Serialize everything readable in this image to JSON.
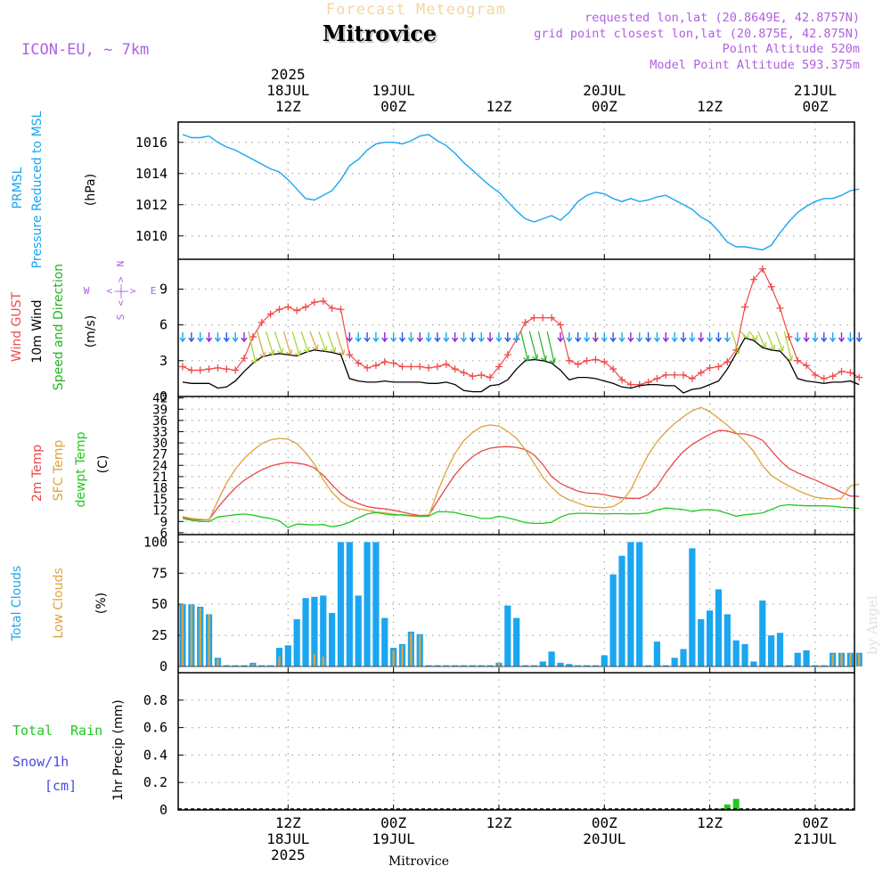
{
  "header": {
    "product": "Forecast Meteogram",
    "location": "Mitrovice",
    "model": "ICON-EU, ~ 7km",
    "info": [
      "requested lon,lat (20.8649E, 42.8757N)",
      "grid point closest lon,lat (20.875E, 42.875N)",
      "Point Altitude 520m",
      "Model Point Altitude 593.375m"
    ],
    "credit": "by Angel",
    "footer_location": "Mitrovice"
  },
  "time_axis": {
    "top_labels": [
      {
        "h": 12,
        "lines": [
          "2025",
          "18JUL",
          "12Z"
        ]
      },
      {
        "h": 24,
        "lines": [
          "19JUL",
          "00Z"
        ]
      },
      {
        "h": 36,
        "lines": [
          "12Z"
        ]
      },
      {
        "h": 48,
        "lines": [
          "20JUL",
          "00Z"
        ]
      },
      {
        "h": 60,
        "lines": [
          "12Z"
        ]
      },
      {
        "h": 72,
        "lines": [
          "21JUL",
          "00Z"
        ]
      }
    ],
    "bottom_labels": [
      {
        "h": 12,
        "lines": [
          "12Z",
          "18JUL",
          "2025"
        ]
      },
      {
        "h": 24,
        "lines": [
          "00Z",
          "19JUL"
        ]
      },
      {
        "h": 36,
        "lines": [
          "12Z"
        ]
      },
      {
        "h": 48,
        "lines": [
          "00Z",
          "20JUL"
        ]
      },
      {
        "h": 60,
        "lines": [
          "12Z"
        ]
      },
      {
        "h": 72,
        "lines": [
          "00Z",
          "21JUL"
        ]
      }
    ]
  },
  "colors": {
    "pressure": "#1aa6f0",
    "gust": "#f04a4a",
    "wind": "#000000",
    "wind_dir": "#22b422",
    "temp2m": "#e84848",
    "sfc_temp": "#dba23c",
    "dewpt": "#22c81e",
    "total_clouds": "#1aa6f0",
    "low_clouds": "#dba23c",
    "rain": "#22c81e",
    "snow": "#4848e8",
    "purple": "#b060e0"
  },
  "panel_labels": {
    "pressure": {
      "line1": "PRMSL",
      "line2": "Pressure Reduced to MSL",
      "unit": "(hPa)"
    },
    "wind": {
      "gust": "Wind GUST",
      "wind": "10m Wind",
      "dir": "Speed and Direction",
      "unit": "(m/s)",
      "compass": {
        "n": "N",
        "s": "S",
        "w": "W",
        "e": "E",
        "rose": "<-|->"
      }
    },
    "temp": {
      "t2m": "2m Temp",
      "sfc": "SFC Temp",
      "dew": "dewpt Temp",
      "unit": "(C)"
    },
    "clouds": {
      "total": "Total Clouds",
      "low": "Low Clouds",
      "unit": "(%)"
    },
    "precip": {
      "rain1": "Total",
      "rain2": "Rain",
      "snow1": "Snow/1h",
      "snow2": "[cm]",
      "unit": "1hr Precip (mm)"
    }
  },
  "chart_data": [
    {
      "type": "line",
      "title": "Pressure Reduced to MSL",
      "ylabel": "(hPa)",
      "ylim": [
        1008.5,
        1017.3
      ],
      "yticks": [
        1010,
        1012,
        1014,
        1016
      ],
      "x_hours": [
        0,
        1,
        2,
        3,
        4,
        5,
        6,
        7,
        8,
        9,
        10,
        11,
        12,
        13,
        14,
        15,
        16,
        17,
        18,
        19,
        20,
        21,
        22,
        23,
        24,
        25,
        26,
        27,
        28,
        29,
        30,
        31,
        32,
        33,
        34,
        35,
        36,
        37,
        38,
        39,
        40,
        41,
        42,
        43,
        44,
        45,
        46,
        47,
        48,
        49,
        50,
        51,
        52,
        53,
        54,
        55,
        56,
        57,
        58,
        59,
        60,
        61,
        62,
        63,
        64,
        65,
        66,
        67,
        68,
        69,
        70,
        71,
        72,
        73,
        74,
        75,
        76,
        77
      ],
      "series": [
        {
          "name": "PRMSL",
          "values": [
            1016.5,
            1016.3,
            1016.3,
            1016.4,
            1016.0,
            1015.7,
            1015.5,
            1015.2,
            1014.9,
            1014.6,
            1014.3,
            1014.1,
            1013.6,
            1013.0,
            1012.4,
            1012.3,
            1012.6,
            1012.9,
            1013.6,
            1014.5,
            1014.9,
            1015.5,
            1015.9,
            1016.0,
            1016.0,
            1015.9,
            1016.1,
            1016.4,
            1016.5,
            1016.1,
            1015.8,
            1015.3,
            1014.7,
            1014.2,
            1013.7,
            1013.2,
            1012.8,
            1012.2,
            1011.6,
            1011.1,
            1010.9,
            1011.1,
            1011.3,
            1011.0,
            1011.5,
            1012.2,
            1012.6,
            1012.8,
            1012.7,
            1012.4,
            1012.2,
            1012.4,
            1012.2,
            1012.3,
            1012.5,
            1012.6,
            1012.3,
            1012.0,
            1011.7,
            1011.2,
            1010.9,
            1010.3,
            1009.6,
            1009.3,
            1009.3,
            1009.2,
            1009.1,
            1009.4,
            1010.2,
            1010.9,
            1011.5,
            1011.9,
            1012.2,
            1012.4,
            1012.4,
            1012.6,
            1012.9,
            1013.0
          ]
        }
      ]
    },
    {
      "type": "line",
      "title": "10m Wind Speed and Direction / Wind GUST",
      "ylabel": "(m/s)",
      "ylim": [
        0,
        11.5
      ],
      "yticks": [
        0,
        3,
        6,
        9
      ],
      "x_hours": [
        0,
        1,
        2,
        3,
        4,
        5,
        6,
        7,
        8,
        9,
        10,
        11,
        12,
        13,
        14,
        15,
        16,
        17,
        18,
        19,
        20,
        21,
        22,
        23,
        24,
        25,
        26,
        27,
        28,
        29,
        30,
        31,
        32,
        33,
        34,
        35,
        36,
        37,
        38,
        39,
        40,
        41,
        42,
        43,
        44,
        45,
        46,
        47,
        48,
        49,
        50,
        51,
        52,
        53,
        54,
        55,
        56,
        57,
        58,
        59,
        60,
        61,
        62,
        63,
        64,
        65,
        66,
        67,
        68,
        69,
        70,
        71,
        72,
        73,
        74,
        75,
        76,
        77
      ],
      "series": [
        {
          "name": "Wind GUST",
          "values": [
            2.5,
            2.2,
            2.2,
            2.3,
            2.4,
            2.3,
            2.2,
            3.2,
            5.0,
            6.2,
            6.9,
            7.3,
            7.5,
            7.2,
            7.5,
            7.9,
            8.0,
            7.4,
            7.3,
            3.5,
            2.8,
            2.4,
            2.6,
            2.9,
            2.8,
            2.5,
            2.5,
            2.5,
            2.4,
            2.5,
            2.7,
            2.3,
            2.0,
            1.7,
            1.8,
            1.6,
            2.5,
            3.5,
            4.8,
            6.2,
            6.6,
            6.6,
            6.6,
            6.0,
            3.0,
            2.7,
            3.0,
            3.1,
            2.9,
            2.3,
            1.4,
            1.0,
            1.0,
            1.2,
            1.5,
            1.8,
            1.8,
            1.8,
            1.5,
            2.0,
            2.4,
            2.5,
            2.9,
            3.9,
            7.5,
            9.8,
            10.7,
            9.2,
            7.4,
            5.0,
            3.0,
            2.6,
            1.8,
            1.5,
            1.7,
            2.1,
            2.0,
            1.6
          ]
        },
        {
          "name": "10m Wind",
          "values": [
            1.2,
            1.1,
            1.1,
            1.1,
            0.7,
            0.8,
            1.3,
            2.1,
            2.8,
            3.3,
            3.5,
            3.6,
            3.5,
            3.4,
            3.7,
            3.9,
            3.8,
            3.7,
            3.5,
            1.5,
            1.3,
            1.2,
            1.2,
            1.3,
            1.2,
            1.2,
            1.2,
            1.2,
            1.1,
            1.1,
            1.2,
            1.0,
            0.5,
            0.4,
            0.4,
            0.9,
            1.0,
            1.4,
            2.3,
            3.0,
            3.1,
            3.0,
            2.8,
            2.2,
            1.4,
            1.6,
            1.6,
            1.5,
            1.3,
            1.1,
            0.8,
            0.7,
            0.9,
            1.0,
            1.0,
            0.9,
            0.9,
            0.3,
            0.6,
            0.7,
            1.0,
            1.3,
            2.3,
            3.6,
            4.9,
            4.7,
            4.1,
            3.9,
            3.8,
            3.0,
            1.5,
            1.3,
            1.2,
            1.1,
            1.2,
            1.2,
            1.3,
            1.0
          ]
        }
      ],
      "direction_arrow_level": 5.0
    },
    {
      "type": "line",
      "title": "2m Temp / SFC Temp / dewpt Temp",
      "ylabel": "(C)",
      "ylim": [
        5.5,
        42.4
      ],
      "yticks": [
        6,
        9,
        12,
        15,
        18,
        21,
        24,
        27,
        30,
        33,
        36,
        39,
        42
      ],
      "x_hours": [
        0,
        1,
        2,
        3,
        4,
        5,
        6,
        7,
        8,
        9,
        10,
        11,
        12,
        13,
        14,
        15,
        16,
        17,
        18,
        19,
        20,
        21,
        22,
        23,
        24,
        25,
        26,
        27,
        28,
        29,
        30,
        31,
        32,
        33,
        34,
        35,
        36,
        37,
        38,
        39,
        40,
        41,
        42,
        43,
        44,
        45,
        46,
        47,
        48,
        49,
        50,
        51,
        52,
        53,
        54,
        55,
        56,
        57,
        58,
        59,
        60,
        61,
        62,
        63,
        64,
        65,
        66,
        67,
        68,
        69,
        70,
        71,
        72,
        73,
        74,
        75,
        76,
        77
      ],
      "series": [
        {
          "name": "2m Temp",
          "values": [
            10.0,
            9.6,
            9.4,
            9.5,
            12.7,
            15.5,
            18.0,
            20.0,
            21.5,
            22.8,
            23.8,
            24.4,
            24.8,
            24.6,
            24.2,
            23.3,
            21.3,
            18.8,
            16.4,
            14.8,
            13.8,
            13.0,
            12.6,
            12.4,
            12.0,
            11.5,
            11.0,
            10.6,
            10.7,
            14.4,
            18.0,
            21.5,
            24.2,
            26.3,
            27.8,
            28.6,
            28.9,
            29.0,
            28.8,
            28.2,
            26.8,
            24.2,
            21.0,
            19.2,
            18.1,
            17.1,
            16.6,
            16.5,
            16.2,
            15.7,
            15.3,
            15.2,
            15.2,
            16.2,
            18.4,
            22.0,
            25.1,
            27.7,
            29.6,
            31.0,
            32.3,
            33.3,
            33.2,
            32.5,
            32.4,
            31.8,
            30.7,
            28.0,
            25.3,
            23.2,
            22.0,
            21.0,
            20.1,
            19.0,
            18.0,
            16.8,
            15.8,
            15.7
          ]
        },
        {
          "name": "SFC Temp",
          "values": [
            10.3,
            9.8,
            9.6,
            9.4,
            14.5,
            19.3,
            23.0,
            25.8,
            28.0,
            29.8,
            30.8,
            31.2,
            31.0,
            29.8,
            27.4,
            24.3,
            20.2,
            16.8,
            14.4,
            13.0,
            12.4,
            12.0,
            11.5,
            11.3,
            11.0,
            10.7,
            10.4,
            10.3,
            10.4,
            16.8,
            22.5,
            27.2,
            30.6,
            32.8,
            34.3,
            34.8,
            34.5,
            33.1,
            31.2,
            28.2,
            24.6,
            20.8,
            18.2,
            16.0,
            14.8,
            13.9,
            13.1,
            12.8,
            12.7,
            13.0,
            14.4,
            17.5,
            22.3,
            26.8,
            30.3,
            33.0,
            35.2,
            37.0,
            38.6,
            39.5,
            38.3,
            36.6,
            34.7,
            32.7,
            30.4,
            27.7,
            24.0,
            21.3,
            19.8,
            18.5,
            17.3,
            16.3,
            15.5,
            15.2,
            15.0,
            15.2,
            18.5,
            19.0
          ]
        },
        {
          "name": "dewpt Temp",
          "values": [
            9.8,
            9.3,
            9.0,
            9.0,
            10.2,
            10.5,
            10.8,
            11.0,
            10.7,
            10.2,
            9.8,
            9.2,
            7.4,
            8.3,
            8.2,
            8.1,
            8.2,
            7.6,
            8.0,
            8.8,
            10.0,
            11.0,
            11.4,
            11.0,
            10.7,
            10.8,
            10.6,
            10.5,
            10.4,
            11.6,
            11.6,
            11.4,
            10.8,
            10.4,
            9.8,
            9.8,
            10.4,
            10.0,
            9.4,
            8.7,
            8.5,
            8.5,
            8.8,
            10.2,
            11.0,
            11.2,
            11.2,
            11.1,
            11.0,
            11.1,
            11.1,
            11.0,
            11.1,
            11.3,
            12.1,
            12.6,
            12.4,
            12.2,
            11.7,
            12.1,
            12.2,
            11.9,
            11.2,
            10.4,
            10.8,
            11.0,
            11.3,
            12.2,
            13.2,
            13.5,
            13.3,
            13.2,
            13.2,
            13.2,
            13.1,
            12.8,
            12.7,
            12.5
          ]
        }
      ]
    },
    {
      "type": "bar",
      "title": "Total Clouds / Low Clouds",
      "ylabel": "(%)",
      "ylim": [
        -5,
        106
      ],
      "yticks": [
        0,
        25,
        50,
        75,
        100
      ],
      "x_hours": [
        0,
        1,
        2,
        3,
        4,
        5,
        6,
        7,
        8,
        9,
        10,
        11,
        12,
        13,
        14,
        15,
        16,
        17,
        18,
        19,
        20,
        21,
        22,
        23,
        24,
        25,
        26,
        27,
        28,
        29,
        30,
        31,
        32,
        33,
        34,
        35,
        36,
        37,
        38,
        39,
        40,
        41,
        42,
        43,
        44,
        45,
        46,
        47,
        48,
        49,
        50,
        51,
        52,
        53,
        54,
        55,
        56,
        57,
        58,
        59,
        60,
        61,
        62,
        63,
        64,
        65,
        66,
        67,
        68,
        69,
        70,
        71,
        72,
        73,
        74,
        75,
        76,
        77
      ],
      "series": [
        {
          "name": "Total Clouds",
          "values": [
            50,
            50,
            48,
            42,
            7,
            1,
            1,
            1,
            3,
            1,
            1,
            15,
            17,
            38,
            55,
            56,
            57,
            43,
            100,
            100,
            57,
            100,
            100,
            39,
            15,
            18,
            28,
            26,
            1,
            1,
            1,
            1,
            1,
            1,
            1,
            1,
            3,
            49,
            39,
            1,
            1,
            4,
            12,
            3,
            2,
            1,
            1,
            1,
            9,
            74,
            89,
            100,
            100,
            1,
            20,
            1,
            7,
            14,
            95,
            38,
            45,
            62,
            42,
            21,
            18,
            4,
            53,
            25,
            27,
            1,
            11,
            13,
            1,
            1,
            11,
            11,
            11,
            11
          ]
        },
        {
          "name": "Low Clouds",
          "values": [
            50,
            50,
            47,
            42,
            6,
            0,
            0,
            0,
            2,
            0,
            0,
            8,
            0,
            0,
            0,
            10,
            8,
            0,
            0,
            0,
            0,
            0,
            0,
            0,
            13,
            17,
            27,
            25,
            0,
            0,
            0,
            0,
            0,
            0,
            0,
            0,
            3,
            0,
            0,
            0,
            0,
            0,
            0,
            0,
            0,
            0,
            0,
            0,
            0,
            0,
            0,
            0,
            0,
            0,
            0,
            0,
            0,
            0,
            0,
            0,
            0,
            0,
            0,
            0,
            0,
            0,
            0,
            0,
            0,
            0,
            0,
            0,
            0,
            0,
            10,
            11,
            11,
            10
          ]
        }
      ]
    },
    {
      "type": "bar",
      "title": "Total Rain / Snow/1h",
      "ylabel": "1hr Precip (mm)",
      "ylim": [
        0,
        1.0
      ],
      "yticks": [
        0,
        0.2,
        0.4,
        0.6,
        0.8
      ],
      "ytick_labels": [
        "0",
        "0.2",
        "0.4",
        "0.6",
        "0.8"
      ],
      "series": [
        {
          "name": "Total Rain",
          "x_hours": [
            61,
            62,
            63
          ],
          "values": [
            0.01,
            0.04,
            0.08
          ]
        },
        {
          "name": "Snow/1h",
          "x_hours": [],
          "values": []
        }
      ]
    }
  ]
}
